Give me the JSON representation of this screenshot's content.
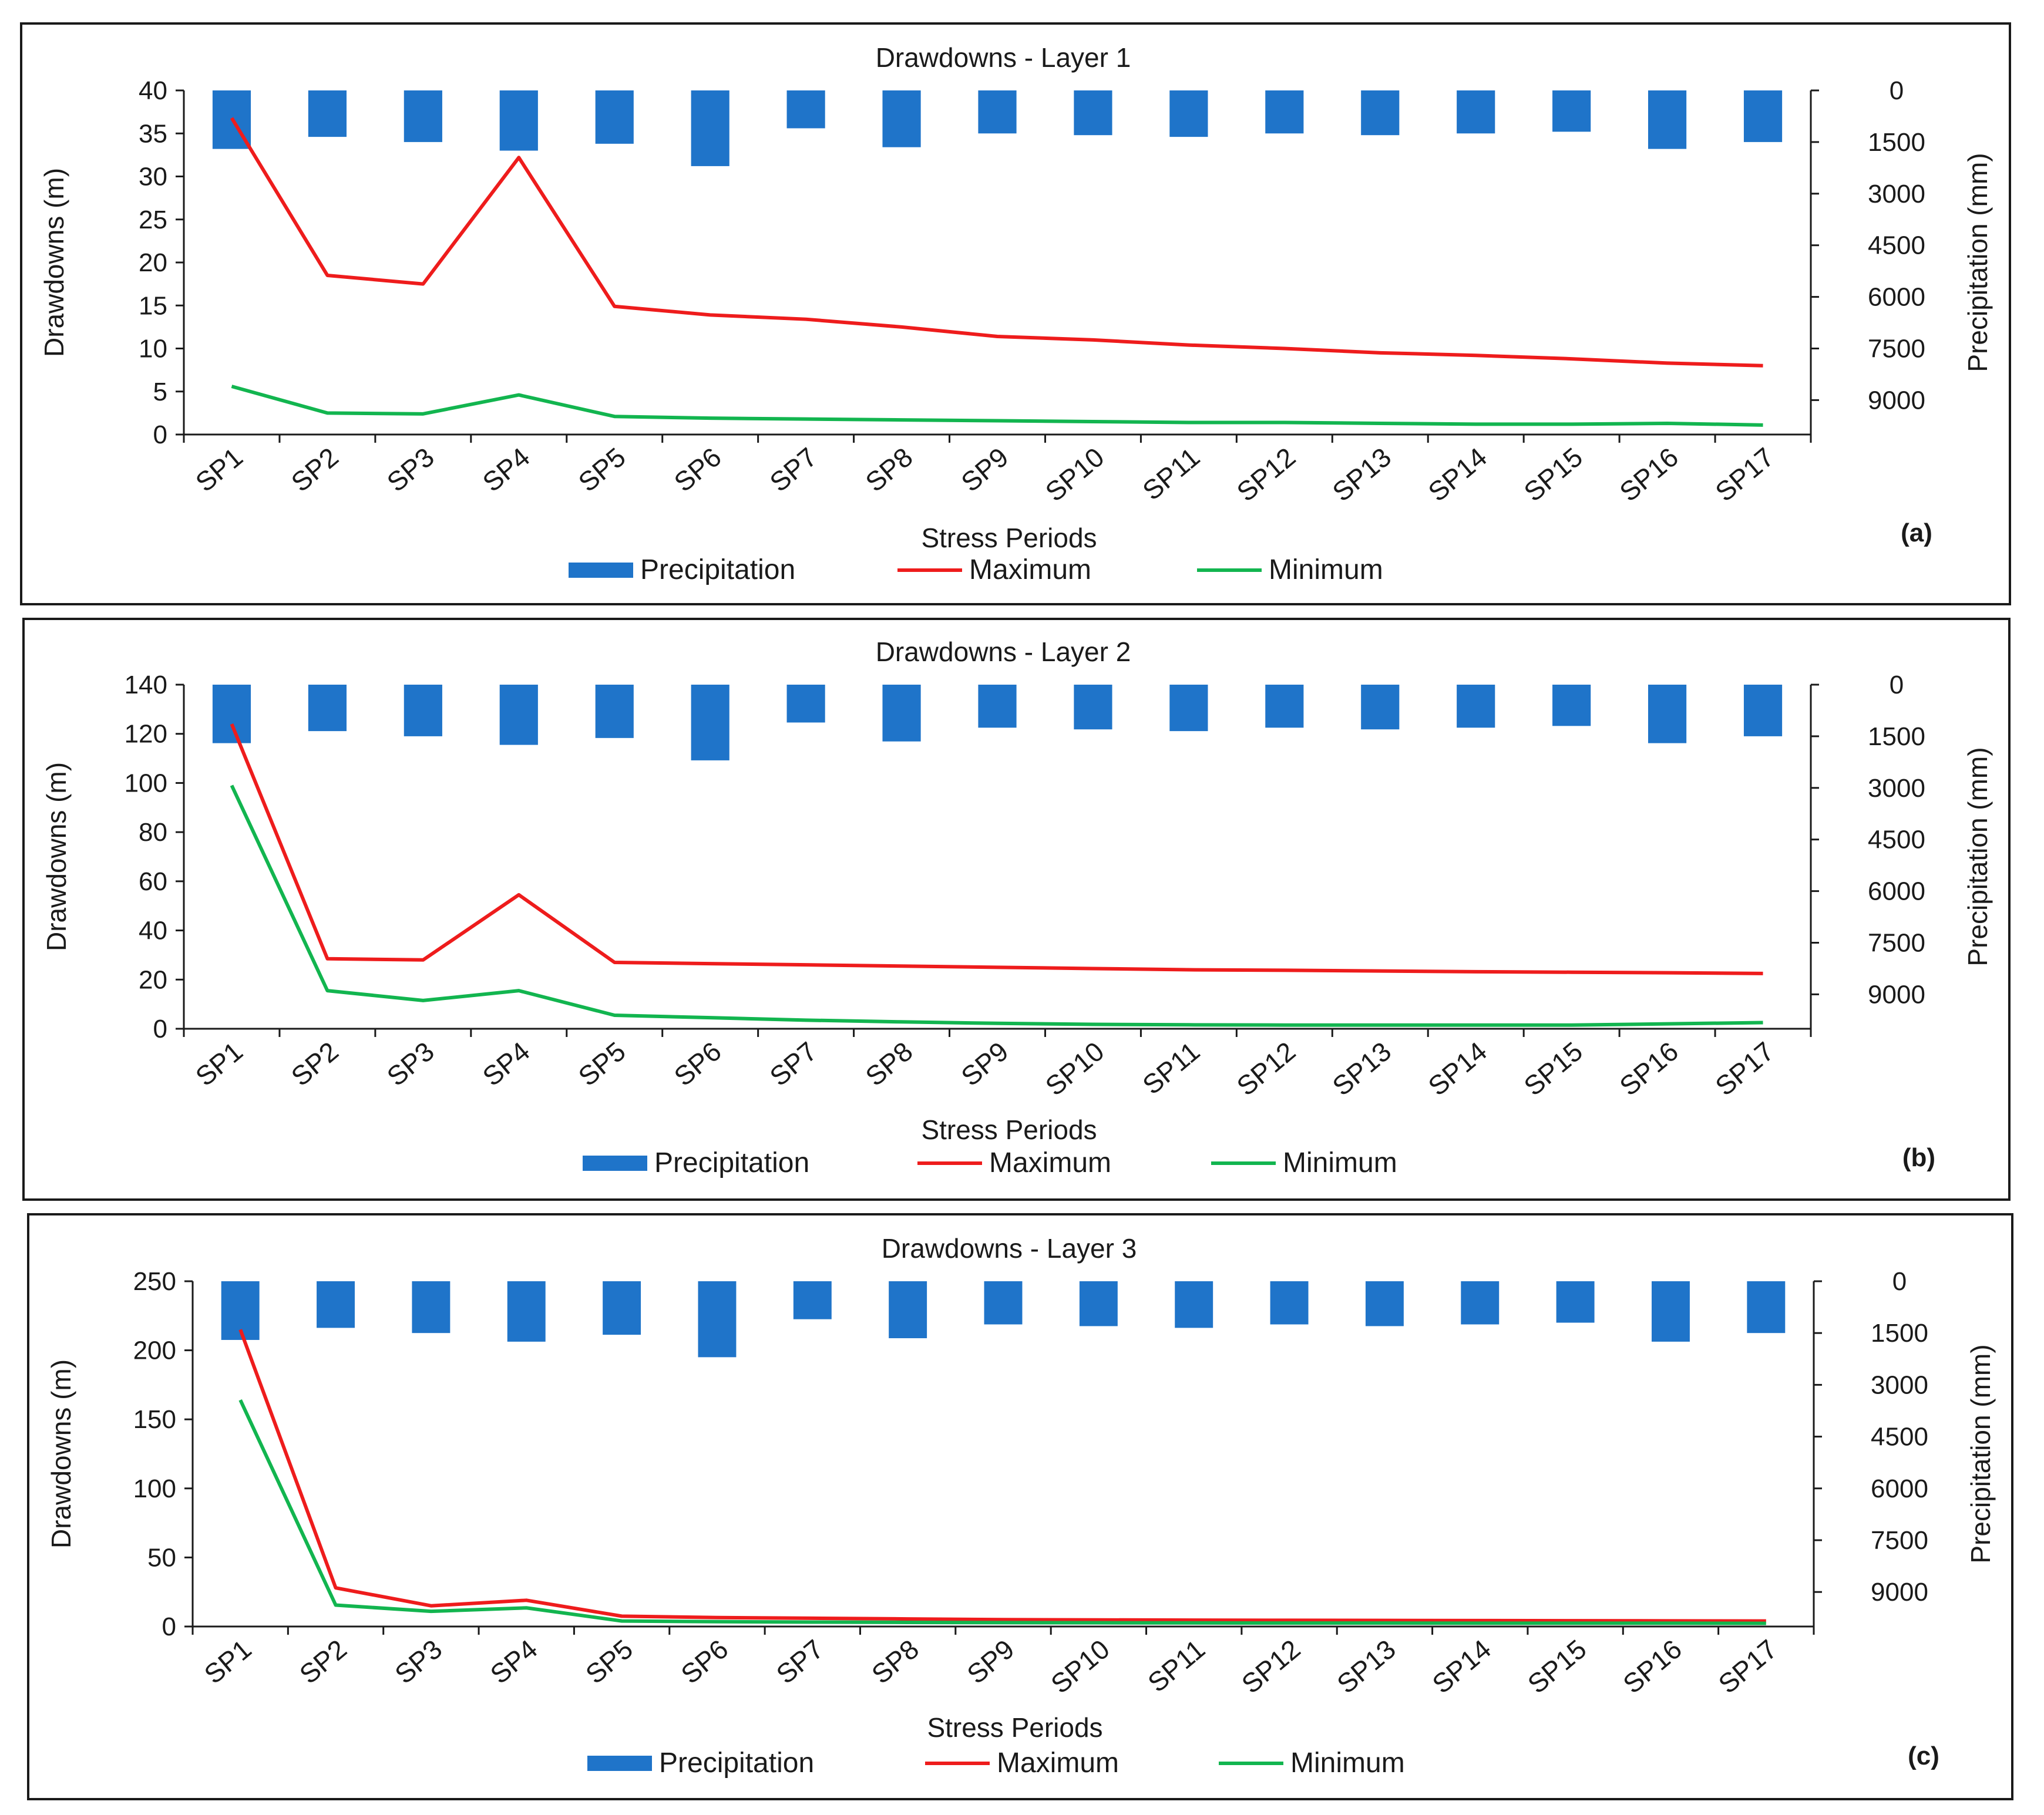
{
  "colors": {
    "precipitation": "#1f74c9",
    "maximum": "#ee1c1c",
    "minimum": "#12b54f",
    "axis": "#1a1a1a"
  },
  "chart_data": [
    {
      "type": "bar+line",
      "title": "Drawdowns - Layer 1",
      "panel_label": "(a)",
      "xlabel": "Stress Periods",
      "ylabel": "Drawdowns (m)",
      "y2label": "Precipitation (mm)",
      "categories": [
        "SP1",
        "SP2",
        "SP3",
        "SP4",
        "SP5",
        "SP6",
        "SP7",
        "SP8",
        "SP9",
        "SP10",
        "SP11",
        "SP12",
        "SP13",
        "SP14",
        "SP15",
        "SP16",
        "SP17"
      ],
      "ylim": [
        0,
        40
      ],
      "yticks": [
        0,
        5,
        10,
        15,
        20,
        25,
        30,
        35,
        40
      ],
      "y2lim": [
        0,
        10000
      ],
      "y2ticks": [
        0,
        1500,
        3000,
        4500,
        6000,
        7500,
        9000
      ],
      "y2_inverted": true,
      "legend": [
        "Precipitation",
        "Maximum",
        "Minimum"
      ],
      "series": [
        {
          "name": "Precipitation",
          "axis": "y2",
          "kind": "bar",
          "values": [
            1700,
            1350,
            1500,
            1750,
            1550,
            2200,
            1100,
            1650,
            1250,
            1300,
            1350,
            1250,
            1300,
            1250,
            1200,
            1700,
            1500
          ]
        },
        {
          "name": "Maximum",
          "axis": "y1",
          "kind": "line",
          "values": [
            36.8,
            18.5,
            17.5,
            32.2,
            14.9,
            13.9,
            13.4,
            12.5,
            11.4,
            11.0,
            10.4,
            10.0,
            9.5,
            9.2,
            8.8,
            8.3,
            8.0
          ]
        },
        {
          "name": "Minimum",
          "axis": "y1",
          "kind": "line",
          "values": [
            5.6,
            2.5,
            2.4,
            4.6,
            2.1,
            1.9,
            1.8,
            1.7,
            1.6,
            1.5,
            1.4,
            1.4,
            1.3,
            1.2,
            1.2,
            1.3,
            1.1
          ]
        }
      ]
    },
    {
      "type": "bar+line",
      "title": "Drawdowns - Layer 2",
      "panel_label": "(b)",
      "xlabel": "Stress Periods",
      "ylabel": "Drawdowns (m)",
      "y2label": "Precipitation (mm)",
      "categories": [
        "SP1",
        "SP2",
        "SP3",
        "SP4",
        "SP5",
        "SP6",
        "SP7",
        "SP8",
        "SP9",
        "SP10",
        "SP11",
        "SP12",
        "SP13",
        "SP14",
        "SP15",
        "SP16",
        "SP17"
      ],
      "ylim": [
        0,
        140
      ],
      "yticks": [
        0,
        20,
        40,
        60,
        80,
        100,
        120,
        140
      ],
      "y2lim": [
        0,
        10000
      ],
      "y2ticks": [
        0,
        1500,
        3000,
        4500,
        6000,
        7500,
        9000
      ],
      "y2_inverted": true,
      "legend": [
        "Precipitation",
        "Maximum",
        "Minimum"
      ],
      "series": [
        {
          "name": "Precipitation",
          "axis": "y2",
          "kind": "bar",
          "values": [
            1700,
            1350,
            1500,
            1750,
            1550,
            2200,
            1100,
            1650,
            1250,
            1300,
            1350,
            1250,
            1300,
            1250,
            1200,
            1700,
            1500
          ]
        },
        {
          "name": "Maximum",
          "axis": "y1",
          "kind": "line",
          "values": [
            124,
            28.5,
            28,
            54.5,
            27,
            26.5,
            26,
            25.5,
            25,
            24.5,
            24,
            23.8,
            23.5,
            23.2,
            23,
            22.8,
            22.5
          ]
        },
        {
          "name": "Minimum",
          "axis": "y1",
          "kind": "line",
          "values": [
            99,
            15.5,
            11.5,
            15.5,
            5.5,
            4.5,
            3.5,
            2.8,
            2.2,
            1.8,
            1.6,
            1.5,
            1.5,
            1.5,
            1.5,
            2.0,
            2.5
          ]
        }
      ]
    },
    {
      "type": "bar+line",
      "title": "Drawdowns - Layer 3",
      "panel_label": "(c)",
      "xlabel": "Stress Periods",
      "ylabel": "Drawdowns (m)",
      "y2label": "Precipitation (mm)",
      "categories": [
        "SP1",
        "SP2",
        "SP3",
        "SP4",
        "SP5",
        "SP6",
        "SP7",
        "SP8",
        "SP9",
        "SP10",
        "SP11",
        "SP12",
        "SP13",
        "SP14",
        "SP15",
        "SP16",
        "SP17"
      ],
      "ylim": [
        0,
        250
      ],
      "yticks": [
        0,
        50,
        100,
        150,
        200,
        250
      ],
      "y2lim": [
        0,
        10000
      ],
      "y2ticks": [
        0,
        1500,
        3000,
        4500,
        6000,
        7500,
        9000
      ],
      "y2_inverted": true,
      "legend": [
        "Precipitation",
        "Maximum",
        "Minimum"
      ],
      "series": [
        {
          "name": "Precipitation",
          "axis": "y2",
          "kind": "bar",
          "values": [
            1700,
            1350,
            1500,
            1750,
            1550,
            2200,
            1100,
            1650,
            1250,
            1300,
            1350,
            1250,
            1300,
            1250,
            1200,
            1750,
            1500
          ]
        },
        {
          "name": "Maximum",
          "axis": "y1",
          "kind": "line",
          "values": [
            215,
            28,
            15,
            19,
            7.5,
            6.5,
            6,
            5.5,
            5,
            4.8,
            4.6,
            4.5,
            4.4,
            4.3,
            4.2,
            4.1,
            4.0
          ]
        },
        {
          "name": "Minimum",
          "axis": "y1",
          "kind": "line",
          "values": [
            164,
            15.5,
            11,
            13.5,
            4,
            3.5,
            3.2,
            3,
            2.8,
            2.7,
            2.6,
            2.5,
            2.5,
            2.4,
            2.4,
            2.4,
            2.3
          ]
        }
      ]
    }
  ]
}
